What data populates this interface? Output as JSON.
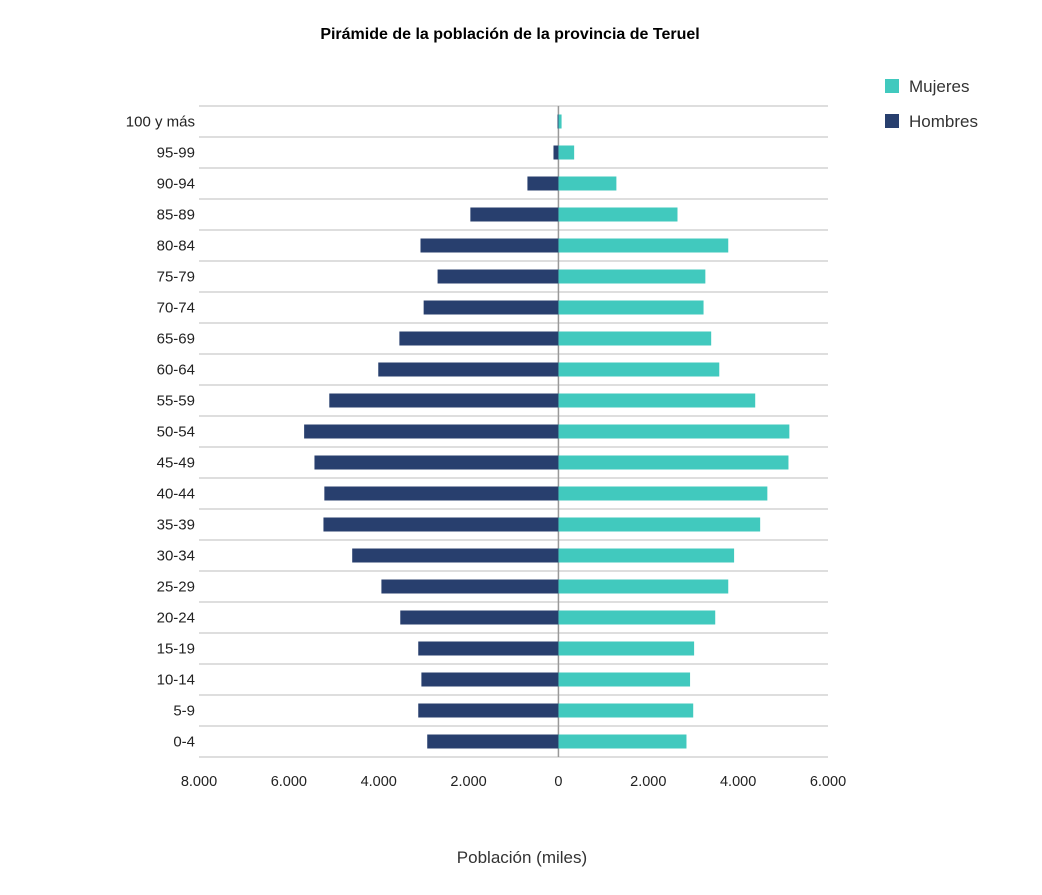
{
  "chart_data": {
    "type": "bar",
    "orientation": "horizontal",
    "title": "Pirámide de la población de la provincia de Teruel",
    "xlabel": "Población (miles)",
    "ylabel": "",
    "xlim": [
      -8000,
      6000
    ],
    "xticks": [
      -8000,
      -6000,
      -4000,
      -2000,
      0,
      2000,
      4000,
      6000
    ],
    "xtick_labels": [
      "8.000",
      "6.000",
      "4.000",
      "2.000",
      "0",
      "2.000",
      "4.000",
      "6.000"
    ],
    "grid": "horizontal",
    "legend_position": "top-right",
    "categories": [
      "100 y más",
      "95-99",
      "90-94",
      "85-89",
      "80-84",
      "75-79",
      "70-74",
      "65-69",
      "60-64",
      "55-59",
      "50-54",
      "45-49",
      "40-44",
      "35-39",
      "30-34",
      "25-29",
      "20-24",
      "15-19",
      "10-14",
      "5-9",
      "0-4"
    ],
    "series": [
      {
        "name": "Mujeres",
        "color": "#41c9be",
        "values": [
          70,
          350,
          1290,
          2650,
          3780,
          3270,
          3230,
          3400,
          3580,
          4380,
          5140,
          5120,
          4650,
          4490,
          3910,
          3780,
          3490,
          3020,
          2930,
          3000,
          2850
        ]
      },
      {
        "name": "Hombres",
        "color": "#283f6e",
        "values": [
          -20,
          -110,
          -690,
          -1960,
          -3070,
          -2690,
          -3000,
          -3540,
          -4010,
          -5100,
          -5660,
          -5430,
          -5210,
          -5230,
          -4590,
          -3940,
          -3520,
          -3120,
          -3050,
          -3120,
          -2920
        ]
      }
    ]
  }
}
